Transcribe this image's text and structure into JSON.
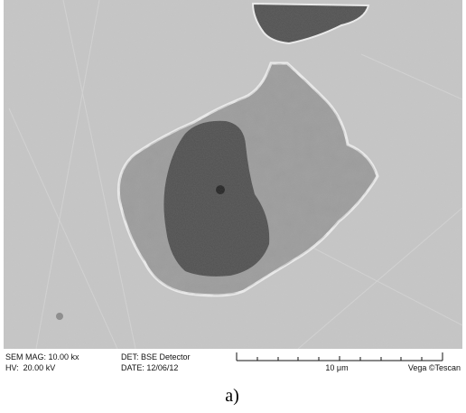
{
  "micrograph": {
    "info": {
      "magnification": "SEM MAG: 10.00 kx",
      "detector": "DET: BSE Detector",
      "voltage": "HV:  20.00 kV",
      "date": "DATE: 12/06/12",
      "scale": "10 μm",
      "brand": "Vega ©Tescan"
    }
  },
  "caption": "a)"
}
